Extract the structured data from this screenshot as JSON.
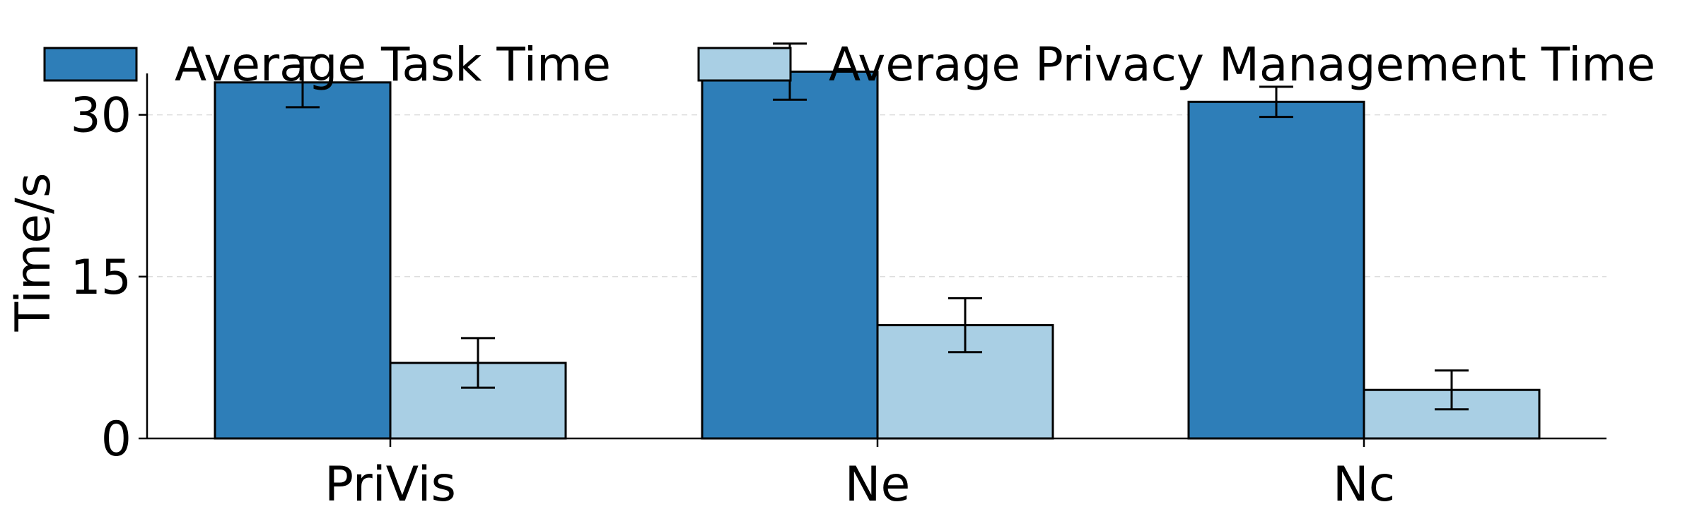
{
  "chart_data": {
    "type": "bar",
    "categories": [
      "PriVis",
      "Ne",
      "Nc"
    ],
    "series": [
      {
        "name": "Average Task Time",
        "color": "#2e7eb8",
        "values": [
          33.0,
          34.0,
          31.2
        ],
        "errors": [
          2.3,
          2.6,
          1.4
        ]
      },
      {
        "name": "Average Privacy Management Time",
        "color": "#a9cfe4",
        "values": [
          7.0,
          10.5,
          4.5
        ],
        "errors": [
          2.3,
          2.5,
          1.8
        ]
      }
    ],
    "xlabel": "",
    "ylabel": "Time/s",
    "ylim": [
      0,
      37.5
    ],
    "yticks": [
      0,
      15,
      30
    ],
    "grid": "horizontal dashed",
    "legend_position": "top"
  }
}
